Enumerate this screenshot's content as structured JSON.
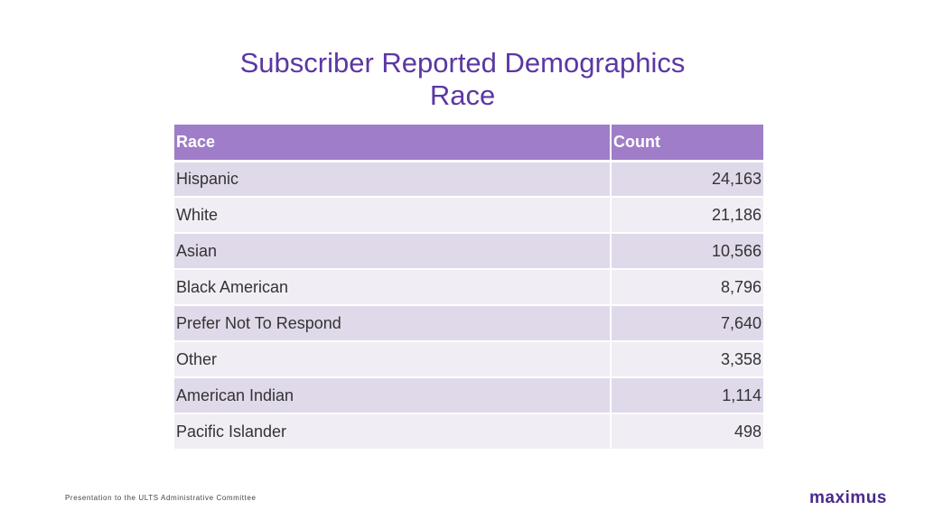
{
  "slide": {
    "title": "Subscriber Reported Demographics",
    "subtitle": "Race"
  },
  "table": {
    "headers": [
      "Race",
      "Count"
    ],
    "rows": [
      {
        "race": "Hispanic",
        "count": "24,163"
      },
      {
        "race": "White",
        "count": "21,186"
      },
      {
        "race": "Asian",
        "count": "10,566"
      },
      {
        "race": "Black American",
        "count": "8,796"
      },
      {
        "race": "Prefer Not To Respond",
        "count": "7,640"
      },
      {
        "race": "Other",
        "count": "3,358"
      },
      {
        "race": "American Indian",
        "count": "1,114"
      },
      {
        "race": "Pacific Islander",
        "count": "498"
      }
    ]
  },
  "footer": {
    "text": "Presentation to the ULTS Administrative Committee",
    "logo": "maximus"
  },
  "colors": {
    "title": "#5b37a4",
    "header_bg": "#9f7dc8",
    "row_dark": "#e0d9ea",
    "row_light": "#f0edf5",
    "logo": "#4a2b8c"
  }
}
